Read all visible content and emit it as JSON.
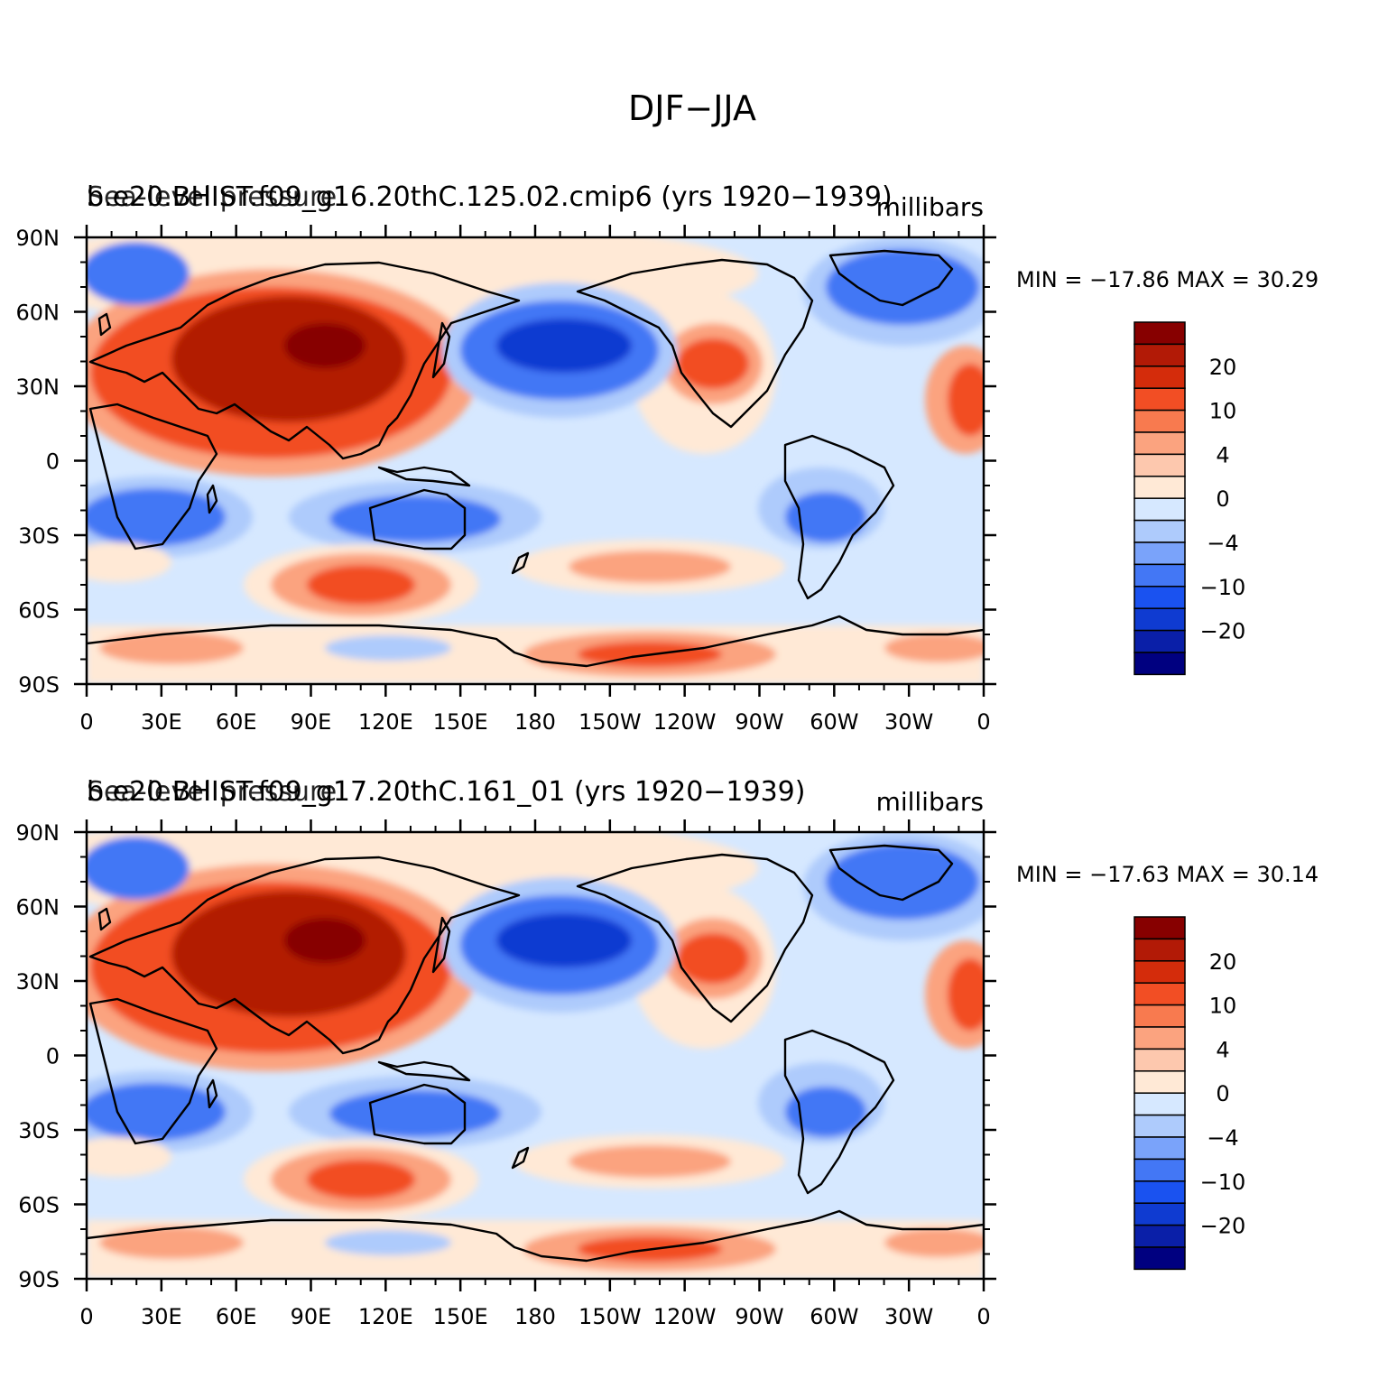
{
  "figure_title": "DJF−JJA",
  "panels": [
    {
      "left_title": "b.e20.BHIST.f09_g16.20thC.125.02.cmip6 (yrs 1920−1939)",
      "left_overlay": "Sea-level pressure",
      "units": "millibars",
      "stats": "MIN = −17.86  MAX =   30.29"
    },
    {
      "left_title": "b.e20.BHIST.f09_g17.20thC.161_01 (yrs 1920−1939)",
      "left_overlay": "Sea-level pressure",
      "units": "millibars",
      "stats": "MIN = −17.63  MAX =   30.14"
    }
  ],
  "x_ticks": [
    "0",
    "30E",
    "60E",
    "90E",
    "120E",
    "150E",
    "180",
    "150W",
    "120W",
    "90W",
    "60W",
    "30W",
    "0"
  ],
  "y_ticks": [
    "90N",
    "60N",
    "30N",
    "0",
    "30S",
    "60S",
    "90S"
  ],
  "colorbar": {
    "colors": [
      "#000080",
      "#0a1fa8",
      "#0f3bd1",
      "#1a52f0",
      "#4377f5",
      "#7aa3fa",
      "#aecbfc",
      "#d6e8ff",
      "#ffe9d6",
      "#fdc8ae",
      "#fba37f",
      "#f87a4f",
      "#f24e24",
      "#d42c0b",
      "#b21a06",
      "#870000"
    ],
    "labels": [
      "−20",
      "−10",
      "−4",
      "0",
      "4",
      "10",
      "20"
    ]
  },
  "palette": {
    "strong_high": "#b21a06",
    "high": "#f24e24",
    "mid_high": "#fba37f",
    "weak_high": "#ffe9d6",
    "weak_low": "#d6e8ff",
    "mid_low": "#aecbfc",
    "low": "#4377f5",
    "strong_low": "#0f3bd1"
  }
}
